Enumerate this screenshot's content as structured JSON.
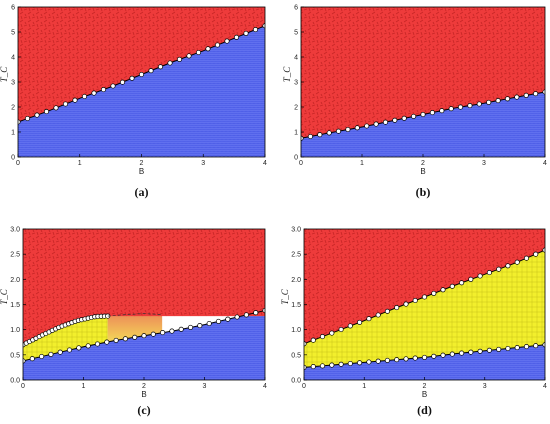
{
  "colors": {
    "red_phase": "#ee3b3b",
    "blue_phase": "#4f5fe8",
    "yellow_phase": "#f2ef2c",
    "orange_phase": "#f0a23a",
    "boundary_dot_fill": "#ffffff",
    "boundary_line": "#000000"
  },
  "chart_data": [
    {
      "type": "area",
      "caption": "(a)",
      "xlabel": "B",
      "ylabel": "T_C",
      "xlim": [
        0,
        4
      ],
      "ylim": [
        0,
        6
      ],
      "xticks": [
        "0",
        "1",
        "2",
        "3",
        "4"
      ],
      "yticks": [
        "0",
        "1",
        "2",
        "3",
        "4",
        "5",
        "6"
      ],
      "grid": false,
      "boundaries": [
        {
          "separates": [
            "blue",
            "red"
          ],
          "points": [
            [
              0,
              1.4
            ],
            [
              0.5,
              1.85
            ],
            [
              1,
              2.35
            ],
            [
              1.5,
              2.8
            ],
            [
              2,
              3.3
            ],
            [
              2.5,
              3.8
            ],
            [
              3,
              4.25
            ],
            [
              3.5,
              4.75
            ],
            [
              4,
              5.25
            ]
          ]
        }
      ],
      "regions": [
        {
          "color_key": "blue_phase",
          "between": [
            "ymin",
            0
          ]
        },
        {
          "color_key": "red_phase",
          "between": [
            0,
            "ymax"
          ]
        }
      ]
    },
    {
      "type": "area",
      "caption": "(b)",
      "xlabel": "B",
      "ylabel": "T_C",
      "xlim": [
        0,
        4
      ],
      "ylim": [
        0,
        6
      ],
      "xticks": [
        "0",
        "1",
        "2",
        "3",
        "4"
      ],
      "yticks": [
        "0",
        "1",
        "2",
        "3",
        "4",
        "5",
        "6"
      ],
      "grid": false,
      "boundaries": [
        {
          "separates": [
            "blue",
            "red"
          ],
          "points": [
            [
              0,
              0.75
            ],
            [
              0.5,
              0.98
            ],
            [
              1,
              1.2
            ],
            [
              1.5,
              1.45
            ],
            [
              2,
              1.7
            ],
            [
              2.5,
              1.95
            ],
            [
              3,
              2.15
            ],
            [
              3.5,
              2.38
            ],
            [
              4,
              2.6
            ]
          ]
        }
      ],
      "regions": [
        {
          "color_key": "blue_phase",
          "between": [
            "ymin",
            0
          ]
        },
        {
          "color_key": "red_phase",
          "between": [
            0,
            "ymax"
          ]
        }
      ]
    },
    {
      "type": "area",
      "caption": "(c)",
      "xlabel": "B",
      "ylabel": "T_C",
      "xlim": [
        0,
        4
      ],
      "ylim": [
        0,
        3
      ],
      "xticks": [
        "0",
        "1",
        "2",
        "3",
        "4"
      ],
      "yticks": [
        "0.0",
        "0.5",
        "1.0",
        "1.5",
        "2.0",
        "2.5",
        "3.0"
      ],
      "grid": false,
      "boundaries": [
        {
          "separates": [
            "blue",
            "yellow"
          ],
          "points": [
            [
              0,
              0.38
            ],
            [
              0.5,
              0.52
            ],
            [
              1,
              0.66
            ],
            [
              1.5,
              0.78
            ],
            [
              2,
              0.88
            ],
            [
              2.5,
              0.98
            ],
            [
              3,
              1.1
            ],
            [
              3.5,
              1.24
            ],
            [
              4,
              1.38
            ]
          ]
        },
        {
          "separates": [
            "yellow",
            "red"
          ],
          "points": [
            [
              0,
              0.7
            ],
            [
              0.3,
              0.88
            ],
            [
              0.6,
              1.05
            ],
            [
              0.9,
              1.18
            ],
            [
              1.2,
              1.26
            ],
            [
              1.4,
              1.27
            ]
          ]
        },
        {
          "separates": [
            "orange",
            "red"
          ],
          "dashed": true,
          "points": [
            [
              1.4,
              1.27
            ],
            [
              1.7,
              1.3
            ],
            [
              2.0,
              1.32
            ],
            [
              2.3,
              1.3
            ]
          ]
        }
      ],
      "regions": [
        {
          "color_key": "blue_phase",
          "between": [
            "ymin",
            0
          ]
        },
        {
          "color_key": "yellow_phase",
          "between": [
            0,
            1
          ]
        },
        {
          "color_key": "orange_phase",
          "between": [
            0,
            2
          ]
        },
        {
          "color_key": "red_phase",
          "between": [
            1,
            "ymax"
          ]
        }
      ]
    },
    {
      "type": "area",
      "caption": "(d)",
      "xlabel": "B",
      "ylabel": "T_C",
      "xlim": [
        0,
        4
      ],
      "ylim": [
        0,
        3
      ],
      "xticks": [
        "0",
        "1",
        "2",
        "3",
        "4"
      ],
      "yticks": [
        "0.0",
        "0.5",
        "1.0",
        "1.5",
        "2.0",
        "2.5",
        "3.0"
      ],
      "grid": false,
      "boundaries": [
        {
          "separates": [
            "blue",
            "yellow"
          ],
          "points": [
            [
              0,
              0.25
            ],
            [
              0.5,
              0.3
            ],
            [
              1,
              0.35
            ],
            [
              1.5,
              0.4
            ],
            [
              2,
              0.45
            ],
            [
              2.5,
              0.52
            ],
            [
              3,
              0.58
            ],
            [
              3.5,
              0.64
            ],
            [
              4,
              0.7
            ]
          ]
        },
        {
          "separates": [
            "yellow",
            "red"
          ],
          "points": [
            [
              0,
              0.72
            ],
            [
              0.5,
              0.95
            ],
            [
              1,
              1.18
            ],
            [
              1.5,
              1.42
            ],
            [
              2,
              1.65
            ],
            [
              2.5,
              1.88
            ],
            [
              3,
              2.1
            ],
            [
              3.5,
              2.32
            ],
            [
              4,
              2.58
            ]
          ]
        }
      ],
      "regions": [
        {
          "color_key": "blue_phase",
          "between": [
            "ymin",
            0
          ]
        },
        {
          "color_key": "yellow_phase",
          "between": [
            0,
            1
          ]
        },
        {
          "color_key": "red_phase",
          "between": [
            1,
            "ymax"
          ]
        }
      ]
    }
  ]
}
